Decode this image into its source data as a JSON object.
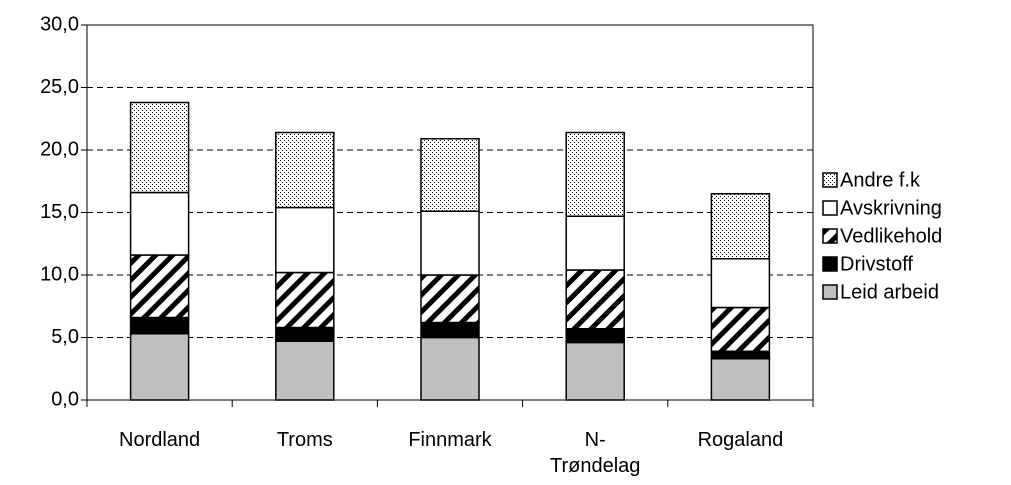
{
  "chart_data": {
    "type": "stacked_bar",
    "categories": [
      "Nordland",
      "Troms",
      "Finnmark",
      "N-Trøndelag",
      "Rogaland"
    ],
    "series": [
      {
        "name": "Leid arbeid",
        "color": "#c0c0c0",
        "pattern": "none",
        "values": [
          5.3,
          4.7,
          5.0,
          4.6,
          3.3
        ]
      },
      {
        "name": "Drivstoff",
        "color": "#000000",
        "pattern": "none",
        "values": [
          1.3,
          1.1,
          1.2,
          1.1,
          0.6
        ]
      },
      {
        "name": "Vedlikehold",
        "color": "#ffffff",
        "pattern": "diagonal",
        "values": [
          5.0,
          4.4,
          3.8,
          4.7,
          3.5
        ]
      },
      {
        "name": "Avskrivning",
        "color": "#ffffff",
        "pattern": "none",
        "values": [
          5.0,
          5.2,
          5.1,
          4.3,
          3.9
        ]
      },
      {
        "name": "Andre f.k",
        "color": "#ffffff",
        "pattern": "dots",
        "values": [
          7.2,
          6.0,
          5.8,
          6.7,
          5.2
        ]
      }
    ],
    "ylim": [
      0,
      30
    ],
    "yticks": [
      {
        "value": 0,
        "label": "0,0"
      },
      {
        "value": 5,
        "label": "5,0"
      },
      {
        "value": 10,
        "label": "10,0"
      },
      {
        "value": 15,
        "label": "15,0"
      },
      {
        "value": 20,
        "label": "20,0"
      },
      {
        "value": 25,
        "label": "25,0"
      },
      {
        "value": 30,
        "label": "30,0"
      }
    ],
    "grid": true,
    "legend": "right"
  }
}
